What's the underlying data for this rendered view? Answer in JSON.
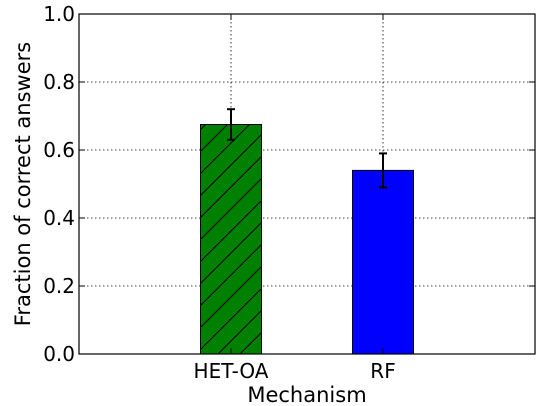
{
  "chart_data": {
    "type": "bar",
    "categories": [
      "HET-OA",
      "RF"
    ],
    "values": [
      0.675,
      0.54
    ],
    "errors": [
      0.045,
      0.05
    ],
    "colors": [
      "#008000",
      "#0000ff"
    ],
    "hatch": [
      "diagonal",
      "none"
    ],
    "title": "",
    "xlabel": "Mechanism",
    "ylabel": "Fraction of correct answers",
    "ylim": [
      0,
      1.0
    ],
    "yticks": [
      0.0,
      0.2,
      0.4,
      0.6,
      0.8,
      1.0
    ],
    "ytick_labels": [
      "0.0",
      "0.2",
      "0.4",
      "0.6",
      "0.8",
      "1.0"
    ],
    "grid": true
  }
}
